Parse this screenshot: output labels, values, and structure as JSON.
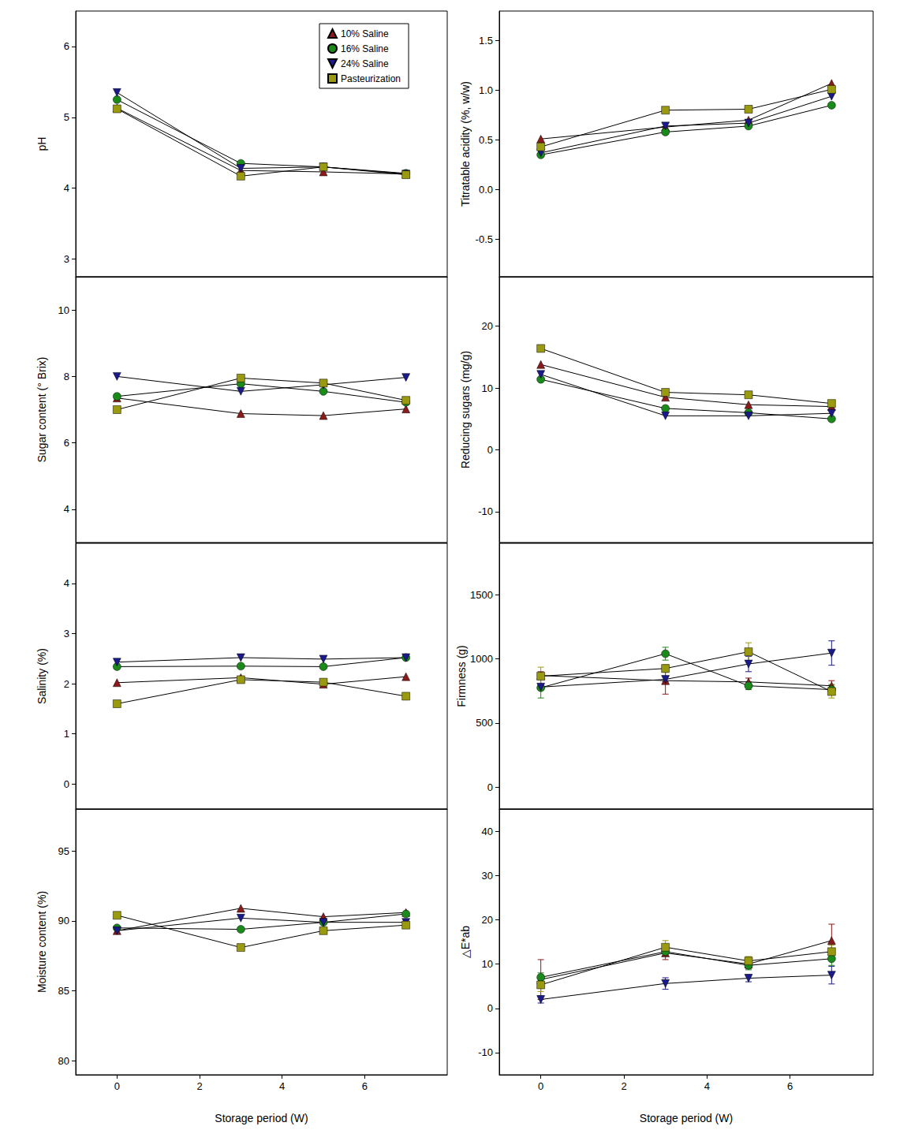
{
  "chart_data": [
    {
      "type": "line",
      "ylabel": "pH",
      "legend": "top-right",
      "tick_labels": "y",
      "grid": false,
      "xlim": [
        -1,
        8
      ],
      "xticks": [
        0,
        2,
        4,
        6
      ],
      "ylim": [
        2.75,
        6.5
      ],
      "yticks": [
        3,
        4,
        5,
        6
      ],
      "series": [
        {
          "name": "10% Saline",
          "color": "#8b1a1a",
          "marker": "triangle",
          "x": [
            0,
            3,
            5,
            7
          ],
          "values": [
            5.13,
            4.25,
            4.23,
            4.2
          ]
        },
        {
          "name": "16% Saline",
          "color": "#1a8a1a",
          "marker": "circle",
          "x": [
            0,
            3,
            5,
            7
          ],
          "values": [
            5.25,
            4.35,
            4.3,
            4.21
          ]
        },
        {
          "name": "24% Saline",
          "color": "#1a1a8a",
          "marker": "triangle-down",
          "x": [
            0,
            3,
            5,
            7
          ],
          "values": [
            5.35,
            4.28,
            4.3,
            4.2
          ]
        },
        {
          "name": "Pasteurization",
          "color": "#9a9a10",
          "marker": "square",
          "x": [
            0,
            3,
            5,
            7
          ],
          "values": [
            5.12,
            4.17,
            4.3,
            4.19
          ]
        }
      ]
    },
    {
      "type": "line",
      "ylabel": "Titratable acidity (%, w/w)",
      "tick_labels": "y",
      "grid": false,
      "xlim": [
        -1,
        8
      ],
      "xticks": [
        0,
        2,
        4,
        6
      ],
      "ylim": [
        -0.88,
        1.8
      ],
      "yticks": [
        {
          "value": -0.5,
          "label": "-0.5"
        },
        {
          "value": 0,
          "label": "0.0"
        },
        0.5,
        {
          "value": 1,
          "label": "1.0"
        },
        1.5
      ],
      "series": [
        {
          "name": "10% Saline",
          "color": "#8b1a1a",
          "marker": "triangle",
          "x": [
            0,
            3,
            5,
            7
          ],
          "values": [
            0.51,
            0.63,
            0.7,
            1.07
          ]
        },
        {
          "name": "16% Saline",
          "color": "#1a8a1a",
          "marker": "circle",
          "x": [
            0,
            3,
            5,
            7
          ],
          "values": [
            0.35,
            0.58,
            0.64,
            0.85
          ]
        },
        {
          "name": "24% Saline",
          "color": "#1a1a8a",
          "marker": "triangle-down",
          "x": [
            0,
            3,
            5,
            7
          ],
          "values": [
            0.37,
            0.64,
            0.67,
            0.94
          ]
        },
        {
          "name": "Pasteurization",
          "color": "#9a9a10",
          "marker": "square",
          "x": [
            0,
            3,
            5,
            7
          ],
          "values": [
            0.43,
            0.8,
            0.81,
            1.01
          ]
        }
      ]
    },
    {
      "type": "line",
      "ylabel": "Sugar content (° Brix)",
      "tick_labels": "y",
      "grid": false,
      "xlim": [
        -1,
        8
      ],
      "xticks": [
        0,
        2,
        4,
        6
      ],
      "ylim": [
        3,
        11
      ],
      "yticks": [
        4,
        6,
        8,
        10
      ],
      "series": [
        {
          "name": "10% Saline",
          "color": "#8b1a1a",
          "marker": "triangle",
          "x": [
            0,
            3,
            5,
            7
          ],
          "values": [
            7.35,
            6.88,
            6.82,
            7.02
          ]
        },
        {
          "name": "16% Saline",
          "color": "#1a8a1a",
          "marker": "circle",
          "x": [
            0,
            3,
            5,
            7
          ],
          "values": [
            7.4,
            7.78,
            7.55,
            7.22
          ]
        },
        {
          "name": "24% Saline",
          "color": "#1a1a8a",
          "marker": "triangle-down",
          "x": [
            0,
            3,
            5,
            7
          ],
          "values": [
            8.0,
            7.55,
            7.75,
            7.97
          ]
        },
        {
          "name": "Pasteurization",
          "color": "#9a9a10",
          "marker": "square",
          "x": [
            0,
            3,
            5,
            7
          ],
          "values": [
            7.0,
            7.95,
            7.8,
            7.28
          ]
        }
      ]
    },
    {
      "type": "line",
      "ylabel": "Reducing sugars (mg/g)",
      "tick_labels": "y",
      "grid": false,
      "xlim": [
        -1,
        8
      ],
      "xticks": [
        0,
        2,
        4,
        6
      ],
      "ylim": [
        -15,
        28
      ],
      "yticks": [
        -10,
        0,
        10,
        20
      ],
      "series": [
        {
          "name": "10% Saline",
          "color": "#8b1a1a",
          "marker": "triangle",
          "x": [
            0,
            3,
            5,
            7
          ],
          "values": [
            13.8,
            8.5,
            7.3,
            7.0
          ]
        },
        {
          "name": "16% Saline",
          "color": "#1a8a1a",
          "marker": "circle",
          "x": [
            0,
            3,
            5,
            7
          ],
          "values": [
            11.4,
            6.7,
            6.0,
            5.0
          ]
        },
        {
          "name": "24% Saline",
          "color": "#1a1a8a",
          "marker": "triangle-down",
          "x": [
            0,
            3,
            5,
            7
          ],
          "values": [
            12.2,
            5.5,
            5.5,
            5.9
          ]
        },
        {
          "name": "Pasteurization",
          "color": "#9a9a10",
          "marker": "square",
          "x": [
            0,
            3,
            5,
            7
          ],
          "values": [
            16.4,
            9.3,
            8.9,
            7.5
          ]
        }
      ]
    },
    {
      "type": "line",
      "ylabel": "Salinity (%)",
      "tick_labels": "y",
      "grid": false,
      "xlim": [
        -1,
        8
      ],
      "xticks": [
        0,
        2,
        4,
        6
      ],
      "ylim": [
        -0.5,
        4.8
      ],
      "yticks": [
        0,
        1,
        2,
        3,
        4
      ],
      "series": [
        {
          "name": "10% Saline",
          "color": "#8b1a1a",
          "marker": "triangle",
          "x": [
            0,
            3,
            5,
            7
          ],
          "values": [
            2.02,
            2.12,
            1.99,
            2.14
          ]
        },
        {
          "name": "16% Saline",
          "color": "#1a8a1a",
          "marker": "circle",
          "x": [
            0,
            3,
            5,
            7
          ],
          "values": [
            2.34,
            2.35,
            2.34,
            2.52
          ]
        },
        {
          "name": "24% Saline",
          "color": "#1a1a8a",
          "marker": "triangle-down",
          "x": [
            0,
            3,
            5,
            7
          ],
          "values": [
            2.43,
            2.52,
            2.49,
            2.52
          ]
        },
        {
          "name": "Pasteurization",
          "color": "#9a9a10",
          "marker": "square",
          "x": [
            0,
            3,
            5,
            7
          ],
          "values": [
            1.6,
            2.08,
            2.03,
            1.75
          ]
        }
      ]
    },
    {
      "type": "line",
      "ylabel": "Firmness (g)",
      "tick_labels": "y",
      "grid": false,
      "xlim": [
        -1,
        8
      ],
      "xticks": [
        0,
        2,
        4,
        6
      ],
      "ylim": [
        -170,
        1900
      ],
      "yticks": [
        0,
        500,
        1000,
        1500
      ],
      "series": [
        {
          "name": "10% Saline",
          "color": "#8b1a1a",
          "marker": "triangle",
          "x": [
            0,
            3,
            5,
            7
          ],
          "values": [
            870,
            830,
            820,
            790
          ],
          "errors": [
            30,
            105,
            30,
            40
          ]
        },
        {
          "name": "16% Saline",
          "color": "#1a8a1a",
          "marker": "circle",
          "x": [
            0,
            3,
            5,
            7
          ],
          "values": [
            775,
            1040,
            790,
            760
          ],
          "errors": [
            80,
            50,
            30,
            40
          ]
        },
        {
          "name": "24% Saline",
          "color": "#1a1a8a",
          "marker": "triangle-down",
          "x": [
            0,
            3,
            5,
            7
          ],
          "values": [
            780,
            840,
            960,
            1045
          ],
          "errors": [
            20,
            20,
            60,
            95
          ]
        },
        {
          "name": "Pasteurization",
          "color": "#9a9a10",
          "marker": "square",
          "x": [
            0,
            3,
            5,
            7
          ],
          "values": [
            865,
            925,
            1055,
            745
          ],
          "errors": [
            70,
            30,
            70,
            50
          ]
        }
      ]
    },
    {
      "type": "line",
      "ylabel": "Moisture content (%)",
      "xlabel": "Storage period (W)",
      "grid": false,
      "xlim": [
        -1,
        8
      ],
      "xticks": [
        0,
        2,
        4,
        6
      ],
      "ylim": [
        79,
        98
      ],
      "yticks": [
        80,
        85,
        90,
        95
      ],
      "series": [
        {
          "name": "10% Saline",
          "color": "#8b1a1a",
          "marker": "triangle",
          "x": [
            0,
            3,
            5,
            7
          ],
          "values": [
            89.3,
            90.9,
            90.3,
            90.6
          ]
        },
        {
          "name": "16% Saline",
          "color": "#1a8a1a",
          "marker": "circle",
          "x": [
            0,
            3,
            5,
            7
          ],
          "values": [
            89.5,
            89.4,
            89.9,
            90.5
          ]
        },
        {
          "name": "24% Saline",
          "color": "#1a1a8a",
          "marker": "triangle-down",
          "x": [
            0,
            3,
            5,
            7
          ],
          "values": [
            89.3,
            90.2,
            89.9,
            89.9
          ]
        },
        {
          "name": "Pasteurization",
          "color": "#9a9a10",
          "marker": "square",
          "x": [
            0,
            3,
            5,
            7
          ],
          "values": [
            90.4,
            88.1,
            89.3,
            89.7
          ]
        }
      ]
    },
    {
      "type": "line",
      "ylabel": "△E*ab",
      "xlabel": "Storage period (W)",
      "grid": false,
      "xlim": [
        -1,
        8
      ],
      "xticks": [
        0,
        2,
        4,
        6
      ],
      "ylim": [
        -15,
        45
      ],
      "yticks": [
        -10,
        0,
        10,
        20,
        30,
        40
      ],
      "series": [
        {
          "name": "10% Saline",
          "color": "#8b1a1a",
          "marker": "triangle",
          "x": [
            0,
            3,
            5,
            7
          ],
          "values": [
            6.5,
            12.5,
            10.0,
            15.3
          ],
          "errors": [
            4.5,
            1.5,
            1,
            3.7
          ]
        },
        {
          "name": "16% Saline",
          "color": "#1a8a1a",
          "marker": "circle",
          "x": [
            0,
            3,
            5,
            7
          ],
          "values": [
            7.0,
            12.8,
            9.7,
            11.2
          ],
          "errors": [
            1,
            1,
            1,
            1.5
          ]
        },
        {
          "name": "24% Saline",
          "color": "#1a1a8a",
          "marker": "triangle-down",
          "x": [
            0,
            3,
            5,
            7
          ],
          "values": [
            2.0,
            5.6,
            6.8,
            7.5
          ],
          "errors": [
            0.8,
            1.3,
            0.8,
            2
          ]
        },
        {
          "name": "Pasteurization",
          "color": "#9a9a10",
          "marker": "square",
          "x": [
            0,
            3,
            5,
            7
          ],
          "values": [
            5.3,
            13.8,
            10.7,
            12.8
          ],
          "errors": [
            1.5,
            1.5,
            1,
            1.5
          ]
        }
      ]
    }
  ]
}
